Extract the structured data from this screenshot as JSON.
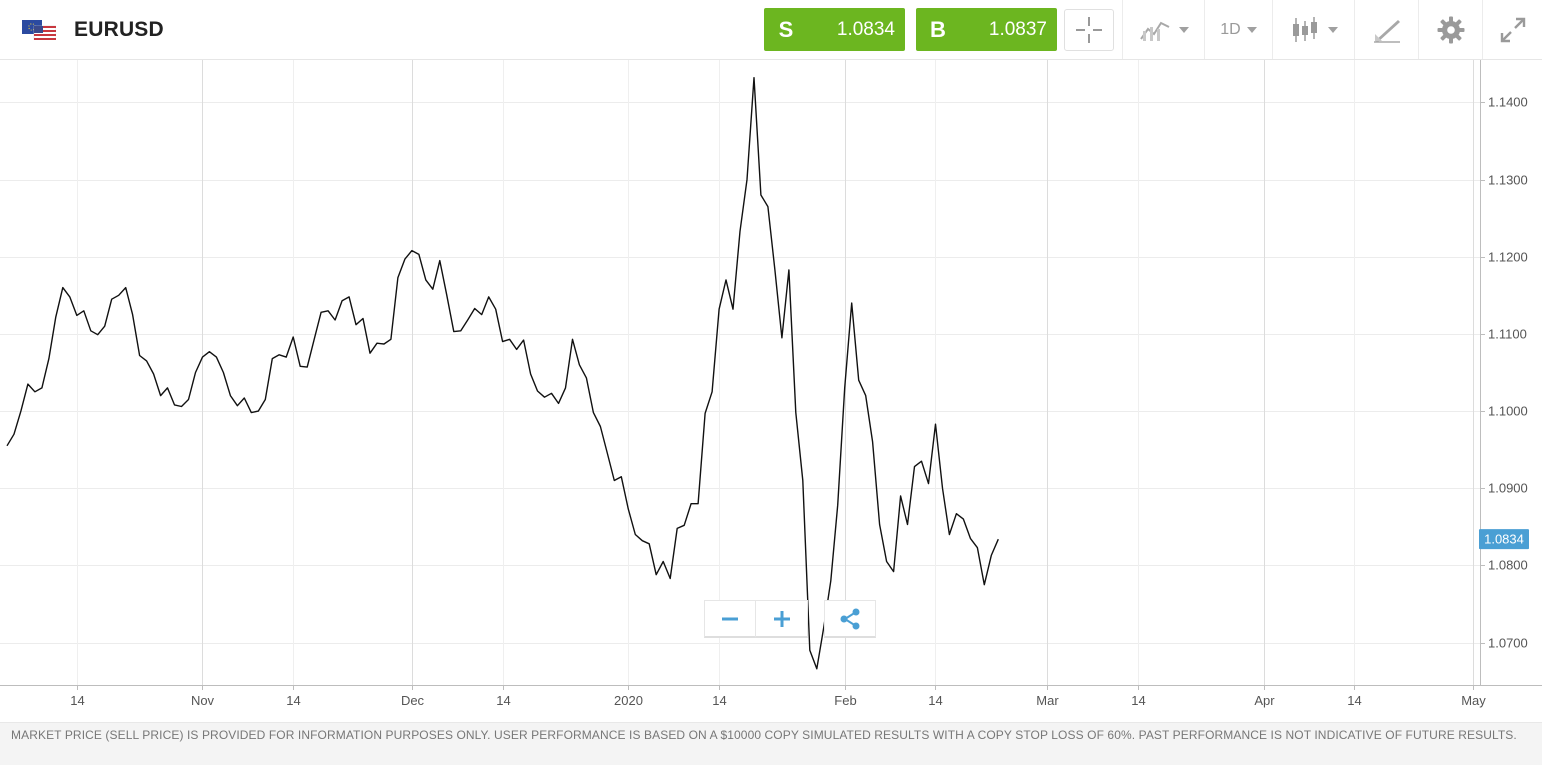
{
  "header": {
    "symbol": "EURUSD",
    "sell": {
      "label": "S",
      "price": "1.0834"
    },
    "buy": {
      "label": "B",
      "price": "1.0837"
    },
    "timeframe": "1D"
  },
  "footer": {
    "disclaimer": "MARKET PRICE (SELL PRICE) IS PROVIDED FOR INFORMATION PURPOSES ONLY. USER PERFORMANCE IS BASED ON A $10000 COPY SIMULATED RESULTS WITH A COPY STOP LOSS OF 60%. PAST PERFORMANCE IS NOT INDICATIVE OF FUTURE RESULTS."
  },
  "colors": {
    "accent": "#6cb620",
    "last_price_badge": "#4a9fd4",
    "line": "#111111",
    "zoom_icon": "#4a9fd4"
  },
  "chart_data": {
    "type": "line",
    "title": "",
    "xlabel": "",
    "ylabel": "",
    "ylim": [
      1.0645,
      1.1455
    ],
    "xlim": [
      "2019-10-03",
      "2020-05-02"
    ],
    "grid": true,
    "x_ticks": [
      {
        "date": "2019-10-14",
        "label": "14"
      },
      {
        "date": "2019-11-01",
        "label": "Nov"
      },
      {
        "date": "2019-11-14",
        "label": "14"
      },
      {
        "date": "2019-12-01",
        "label": "Dec"
      },
      {
        "date": "2019-12-14",
        "label": "14"
      },
      {
        "date": "2020-01-01",
        "label": "2020"
      },
      {
        "date": "2020-01-14",
        "label": "14"
      },
      {
        "date": "2020-02-01",
        "label": "Feb"
      },
      {
        "date": "2020-02-14",
        "label": "14"
      },
      {
        "date": "2020-03-01",
        "label": "Mar"
      },
      {
        "date": "2020-03-14",
        "label": "14"
      },
      {
        "date": "2020-04-01",
        "label": "Apr"
      },
      {
        "date": "2020-04-14",
        "label": "14"
      },
      {
        "date": "2020-05-01",
        "label": "May"
      }
    ],
    "y_ticks": [
      1.07,
      1.08,
      1.09,
      1.1,
      1.11,
      1.12,
      1.13,
      1.14
    ],
    "y_tick_labels": [
      "1.0700",
      "1.0800",
      "1.0900",
      "1.1000",
      "1.1100",
      "1.1200",
      "1.1300",
      "1.1400"
    ],
    "last_price": {
      "value": 1.0834,
      "label": "1.0834"
    },
    "series": [
      {
        "name": "",
        "points": [
          [
            "2019-10-04",
            1.0955
          ],
          [
            "2019-10-05",
            1.097
          ],
          [
            "2019-10-06",
            1.1
          ],
          [
            "2019-10-07",
            1.1035
          ],
          [
            "2019-10-08",
            1.1025
          ],
          [
            "2019-10-09",
            1.103
          ],
          [
            "2019-10-10",
            1.1068
          ],
          [
            "2019-10-11",
            1.1122
          ],
          [
            "2019-10-12",
            1.116
          ],
          [
            "2019-10-13",
            1.1148
          ],
          [
            "2019-10-14",
            1.1124
          ],
          [
            "2019-10-15",
            1.113
          ],
          [
            "2019-10-16",
            1.1104
          ],
          [
            "2019-10-17",
            1.1099
          ],
          [
            "2019-10-18",
            1.111
          ],
          [
            "2019-10-19",
            1.1145
          ],
          [
            "2019-10-20",
            1.115
          ],
          [
            "2019-10-21",
            1.116
          ],
          [
            "2019-10-22",
            1.1125
          ],
          [
            "2019-10-23",
            1.1072
          ],
          [
            "2019-10-24",
            1.1065
          ],
          [
            "2019-10-25",
            1.1048
          ],
          [
            "2019-10-26",
            1.102
          ],
          [
            "2019-10-27",
            1.103
          ],
          [
            "2019-10-28",
            1.1008
          ],
          [
            "2019-10-29",
            1.1006
          ],
          [
            "2019-10-30",
            1.1015
          ],
          [
            "2019-10-31",
            1.105
          ],
          [
            "2019-11-01",
            1.107
          ],
          [
            "2019-11-02",
            1.1077
          ],
          [
            "2019-11-03",
            1.107
          ],
          [
            "2019-11-04",
            1.105
          ],
          [
            "2019-11-05",
            1.102
          ],
          [
            "2019-11-06",
            1.1007
          ],
          [
            "2019-11-07",
            1.1017
          ],
          [
            "2019-11-08",
            1.0998
          ],
          [
            "2019-11-09",
            1.1
          ],
          [
            "2019-11-10",
            1.1015
          ],
          [
            "2019-11-11",
            1.1068
          ],
          [
            "2019-11-12",
            1.1073
          ],
          [
            "2019-11-13",
            1.107
          ],
          [
            "2019-11-14",
            1.1096
          ],
          [
            "2019-11-15",
            1.1058
          ],
          [
            "2019-11-16",
            1.1057
          ],
          [
            "2019-11-17",
            1.1093
          ],
          [
            "2019-11-18",
            1.1128
          ],
          [
            "2019-11-19",
            1.113
          ],
          [
            "2019-11-20",
            1.1118
          ],
          [
            "2019-11-21",
            1.1143
          ],
          [
            "2019-11-22",
            1.1148
          ],
          [
            "2019-11-23",
            1.1112
          ],
          [
            "2019-11-24",
            1.112
          ],
          [
            "2019-11-25",
            1.1075
          ],
          [
            "2019-11-26",
            1.1088
          ],
          [
            "2019-11-27",
            1.1087
          ],
          [
            "2019-11-28",
            1.1093
          ],
          [
            "2019-11-29",
            1.1173
          ],
          [
            "2019-11-30",
            1.1197
          ],
          [
            "2019-12-01",
            1.1208
          ],
          [
            "2019-12-02",
            1.1203
          ],
          [
            "2019-12-03",
            1.117
          ],
          [
            "2019-12-04",
            1.1158
          ],
          [
            "2019-12-05",
            1.1195
          ],
          [
            "2019-12-06",
            1.115
          ],
          [
            "2019-12-07",
            1.1103
          ],
          [
            "2019-12-08",
            1.1104
          ],
          [
            "2019-12-09",
            1.1118
          ],
          [
            "2019-12-10",
            1.1133
          ],
          [
            "2019-12-11",
            1.1125
          ],
          [
            "2019-12-12",
            1.1148
          ],
          [
            "2019-12-13",
            1.1132
          ],
          [
            "2019-12-14",
            1.109
          ],
          [
            "2019-12-15",
            1.1093
          ],
          [
            "2019-12-16",
            1.108
          ],
          [
            "2019-12-17",
            1.1092
          ],
          [
            "2019-12-18",
            1.1048
          ],
          [
            "2019-12-19",
            1.1026
          ],
          [
            "2019-12-20",
            1.1018
          ],
          [
            "2019-12-21",
            1.1023
          ],
          [
            "2019-12-22",
            1.101
          ],
          [
            "2019-12-23",
            1.103
          ],
          [
            "2019-12-24",
            1.1093
          ],
          [
            "2019-12-25",
            1.106
          ],
          [
            "2019-12-26",
            1.1043
          ],
          [
            "2019-12-27",
            1.0998
          ],
          [
            "2019-12-28",
            1.098
          ],
          [
            "2019-12-29",
            1.0945
          ],
          [
            "2019-12-30",
            1.091
          ],
          [
            "2019-12-31",
            1.0915
          ],
          [
            "2020-01-01",
            1.0873
          ],
          [
            "2020-01-02",
            1.084
          ],
          [
            "2020-01-03",
            1.0832
          ],
          [
            "2020-01-04",
            1.0828
          ],
          [
            "2020-01-05",
            1.0788
          ],
          [
            "2020-01-06",
            1.0805
          ],
          [
            "2020-01-07",
            1.0783
          ],
          [
            "2020-01-08",
            1.0848
          ],
          [
            "2020-01-09",
            1.0852
          ],
          [
            "2020-01-10",
            1.088
          ],
          [
            "2020-01-11",
            1.088
          ],
          [
            "2020-01-12",
            1.0997
          ],
          [
            "2020-01-13",
            1.1025
          ],
          [
            "2020-01-14",
            1.1132
          ],
          [
            "2020-01-15",
            1.117
          ],
          [
            "2020-01-16",
            1.1132
          ],
          [
            "2020-01-17",
            1.1233
          ],
          [
            "2020-01-18",
            1.13
          ],
          [
            "2020-01-19",
            1.1432
          ],
          [
            "2020-01-20",
            1.128
          ],
          [
            "2020-01-21",
            1.1265
          ],
          [
            "2020-01-22",
            1.1183
          ],
          [
            "2020-01-23",
            1.1095
          ],
          [
            "2020-01-24",
            1.1183
          ],
          [
            "2020-01-25",
            1.0998
          ],
          [
            "2020-01-26",
            1.091
          ],
          [
            "2020-01-27",
            1.069
          ],
          [
            "2020-01-28",
            1.0666
          ],
          [
            "2020-01-29",
            1.072
          ],
          [
            "2020-01-30",
            1.078
          ],
          [
            "2020-01-31",
            1.0878
          ],
          [
            "2020-02-01",
            1.103
          ],
          [
            "2020-02-02",
            1.114
          ],
          [
            "2020-02-03",
            1.104
          ],
          [
            "2020-02-04",
            1.102
          ],
          [
            "2020-02-05",
            1.096
          ],
          [
            "2020-02-06",
            1.0853
          ],
          [
            "2020-02-07",
            1.0805
          ],
          [
            "2020-02-08",
            1.0792
          ],
          [
            "2020-02-09",
            1.089
          ],
          [
            "2020-02-10",
            1.0853
          ],
          [
            "2020-02-11",
            1.0928
          ],
          [
            "2020-02-12",
            1.0935
          ],
          [
            "2020-02-13",
            1.0906
          ],
          [
            "2020-02-14",
            1.0983
          ],
          [
            "2020-02-15",
            1.09
          ],
          [
            "2020-02-16",
            1.084
          ],
          [
            "2020-02-17",
            1.0867
          ],
          [
            "2020-02-18",
            1.086
          ],
          [
            "2020-02-19",
            1.0835
          ],
          [
            "2020-02-20",
            1.0823
          ],
          [
            "2020-02-21",
            1.0775
          ],
          [
            "2020-02-22",
            1.0813
          ],
          [
            "2020-02-23",
            1.0834
          ]
        ]
      }
    ]
  }
}
